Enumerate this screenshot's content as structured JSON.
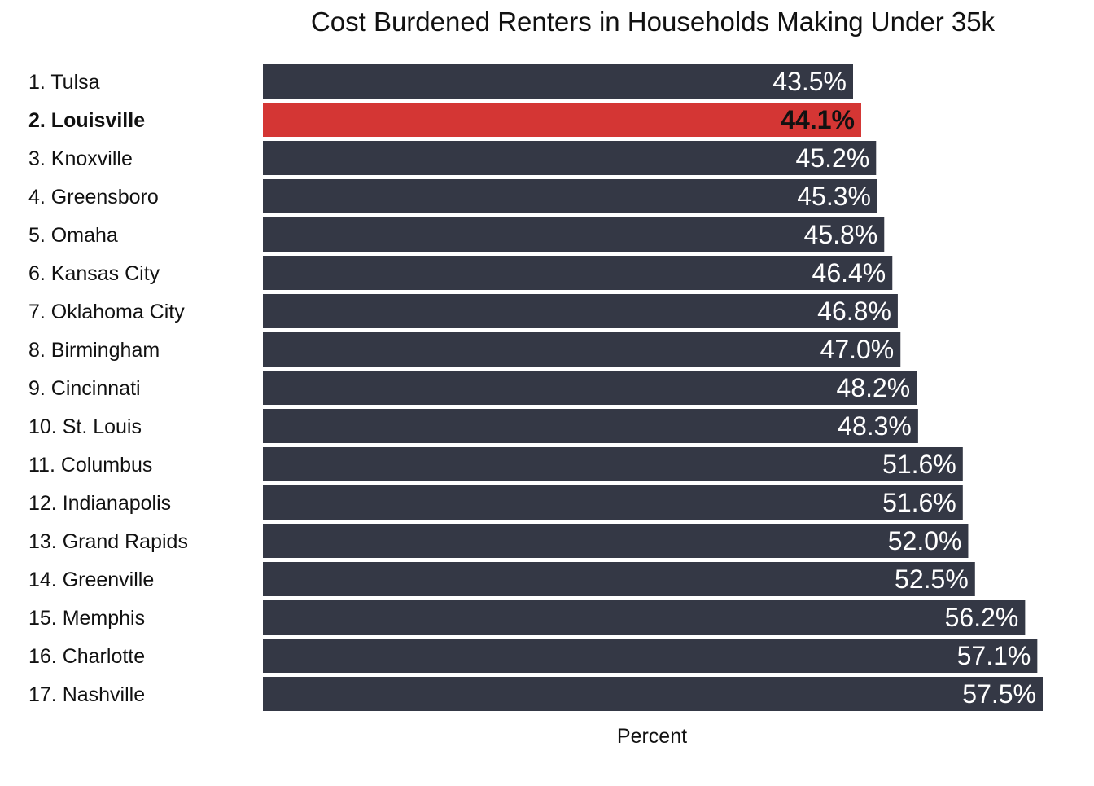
{
  "chart_data": {
    "type": "bar",
    "orientation": "horizontal",
    "title": "Cost Burdened Renters in Households Making Under 35k",
    "xlabel": "Percent",
    "ylabel": "",
    "grid": false,
    "legend": "none",
    "highlight_index": 1,
    "colors": {
      "bar": "#343845",
      "highlight": "#d43634"
    },
    "categories": [
      "1. Tulsa",
      "2. Louisville",
      "3. Knoxville",
      "4. Greensboro",
      "5. Omaha",
      "6. Kansas City",
      "7. Oklahoma City",
      "8. Birmingham",
      "9. Cincinnati",
      "10. St. Louis",
      "11. Columbus",
      "12. Indianapolis",
      "13. Grand Rapids",
      "14. Greenville",
      "15. Memphis",
      "16. Charlotte",
      "17. Nashville"
    ],
    "values": [
      43.5,
      44.1,
      45.2,
      45.3,
      45.8,
      46.4,
      46.8,
      47.0,
      48.2,
      48.3,
      51.6,
      51.6,
      52.0,
      52.5,
      56.2,
      57.1,
      57.5
    ],
    "value_labels": [
      "43.5%",
      "44.1%",
      "45.2%",
      "45.3%",
      "45.8%",
      "46.4%",
      "46.8%",
      "47.0%",
      "48.2%",
      "48.3%",
      "51.6%",
      "51.6%",
      "52.0%",
      "52.5%",
      "56.2%",
      "57.1%",
      "57.5%"
    ]
  }
}
